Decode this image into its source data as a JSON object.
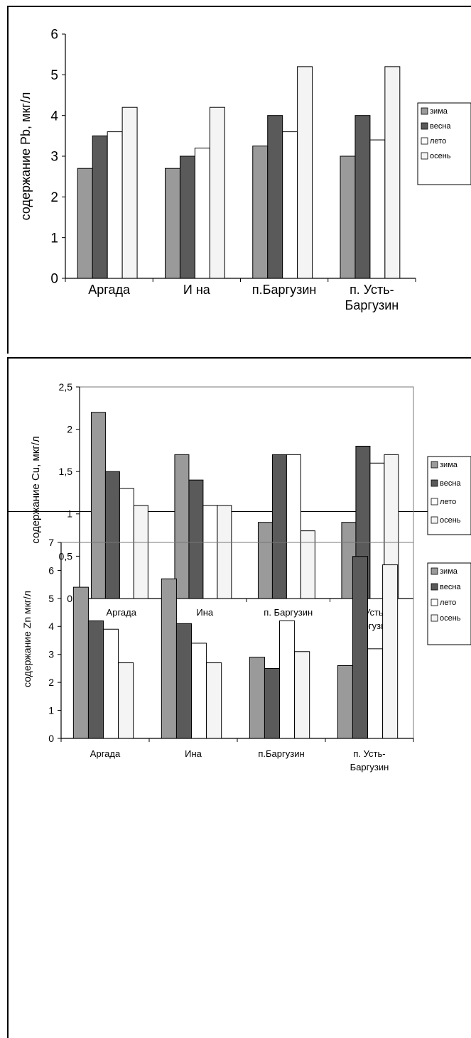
{
  "chart_data": [
    {
      "type": "bar",
      "ylabel": "содержание  Pb, мкг/л",
      "yticks": [
        "0",
        "1",
        "2",
        "3",
        "4",
        "5",
        "6"
      ],
      "ylim": [
        0,
        6
      ],
      "categories": [
        "Аргада",
        "И на",
        "п.Баргузин",
        "п. Усть-\nБаргузин"
      ],
      "legend": [
        "зима",
        "весна",
        "лето",
        "осень"
      ],
      "legend_position": "right",
      "series": [
        {
          "name": "зима",
          "values": [
            2.7,
            2.7,
            3.25,
            3.0
          ]
        },
        {
          "name": "весна",
          "values": [
            3.5,
            3.0,
            4.0,
            4.0
          ]
        },
        {
          "name": "лето",
          "values": [
            3.6,
            3.2,
            3.6,
            3.4
          ]
        },
        {
          "name": "осень",
          "values": [
            4.2,
            4.2,
            5.2,
            5.2
          ]
        }
      ]
    },
    {
      "type": "bar",
      "ylabel": "содержание  Cu, мкг/л",
      "yticks": [
        "0",
        "0,5",
        "1",
        "1,5",
        "2",
        "2,5"
      ],
      "ylim": [
        0,
        2.5
      ],
      "categories": [
        "Аргада",
        "Ина",
        "п. Баргузин",
        "п.Усть-\nБаргузин"
      ],
      "legend": [
        "зима",
        "весна",
        "лето",
        "осень"
      ],
      "legend_position": "right",
      "series": [
        {
          "name": "зима",
          "values": [
            2.2,
            1.7,
            0.9,
            0.9
          ]
        },
        {
          "name": "весна",
          "values": [
            1.5,
            1.4,
            1.7,
            1.8
          ]
        },
        {
          "name": "лето",
          "values": [
            1.3,
            1.1,
            1.7,
            1.6
          ]
        },
        {
          "name": "осень",
          "values": [
            1.1,
            1.1,
            0.8,
            1.7
          ]
        }
      ]
    },
    {
      "type": "bar",
      "ylabel": "содержание  Zn мкг/л",
      "yticks": [
        "0",
        "1",
        "2",
        "3",
        "4",
        "5",
        "6",
        "7"
      ],
      "ylim": [
        0,
        7
      ],
      "categories": [
        "Аргада",
        "Ина",
        "п.Баргузин",
        "п. Усть-\nБаргузин"
      ],
      "legend": [
        "зима",
        "весна",
        "лето",
        "осень"
      ],
      "legend_position": "right",
      "series": [
        {
          "name": "зима",
          "values": [
            5.4,
            5.7,
            2.9,
            2.6
          ]
        },
        {
          "name": "весна",
          "values": [
            4.2,
            4.1,
            2.5,
            6.5
          ]
        },
        {
          "name": "лето",
          "values": [
            3.9,
            3.4,
            4.2,
            3.2
          ]
        },
        {
          "name": "осень",
          "values": [
            2.7,
            2.7,
            3.1,
            6.2
          ]
        }
      ]
    }
  ],
  "colors": {
    "зима": "#9a9a9a",
    "весна": "#5a5a5a",
    "лето": "#ffffff",
    "осень": "#f4f4f4"
  }
}
